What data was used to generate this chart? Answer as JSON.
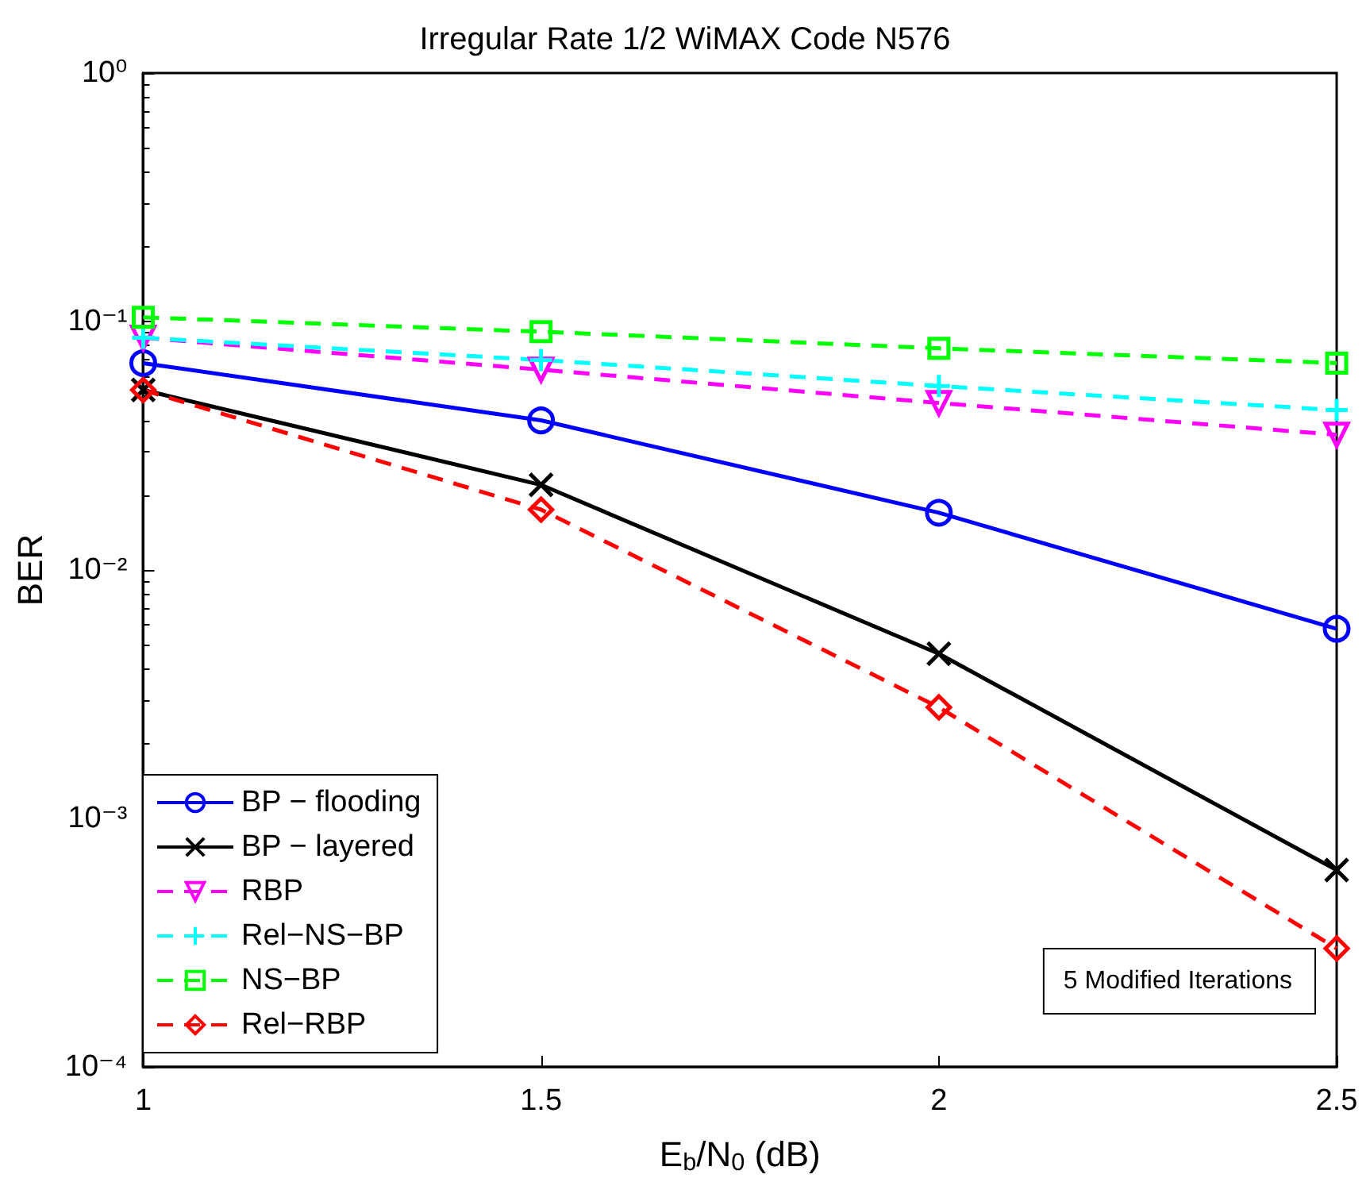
{
  "chart_data": {
    "type": "line",
    "title": "Irregular Rate 1/2 WiMAX Code N576",
    "xlabel": "E$_{b}$/N$_{0}$ (dB)",
    "ylabel": "BER",
    "x": [
      1,
      1.5,
      2,
      2.5
    ],
    "xlim": [
      1,
      2.5
    ],
    "xticks": [
      1,
      1.5,
      2,
      2.5
    ],
    "ylim": [
      0.0001,
      1
    ],
    "log": "y",
    "yticks": [
      {
        "value": 0.0001,
        "label": "10⁻⁴"
      },
      {
        "value": 0.001,
        "label": "10⁻³"
      },
      {
        "value": 0.01,
        "label": "10⁻²"
      },
      {
        "value": 0.1,
        "label": "10⁻¹"
      },
      {
        "value": 1,
        "label": "10⁰"
      }
    ],
    "grid": false,
    "legend": "bottom left",
    "annotations": [
      "5 Modified Iterations"
    ],
    "series": [
      {
        "name": "BP − flooding",
        "color": "#0000ff",
        "marker": "circle",
        "line_style": "solid",
        "values": [
          0.068,
          0.04,
          0.017,
          0.0058
        ]
      },
      {
        "name": "BP − layered",
        "color": "#000000",
        "marker": "cross",
        "line_style": "solid",
        "values": [
          0.053,
          0.022,
          0.0046,
          0.00062
        ]
      },
      {
        "name": "RBP",
        "color": "#ff00ff",
        "marker": "triangle",
        "line_style": "dashed",
        "values": [
          0.086,
          0.064,
          0.047,
          0.035
        ]
      },
      {
        "name": "Rel−NS−BP",
        "color": "#00ffff",
        "marker": "plus",
        "line_style": "dashed",
        "values": [
          0.086,
          0.07,
          0.055,
          0.044
        ]
      },
      {
        "name": "NS−BP",
        "color": "#00ff00",
        "marker": "square",
        "line_style": "dashed",
        "values": [
          0.104,
          0.091,
          0.078,
          0.068
        ]
      },
      {
        "name": "Rel−RBP",
        "color": "#ff0000",
        "marker": "diamond",
        "line_style": "dashed",
        "values": [
          0.053,
          0.0175,
          0.0028,
          0.0003
        ]
      }
    ]
  }
}
